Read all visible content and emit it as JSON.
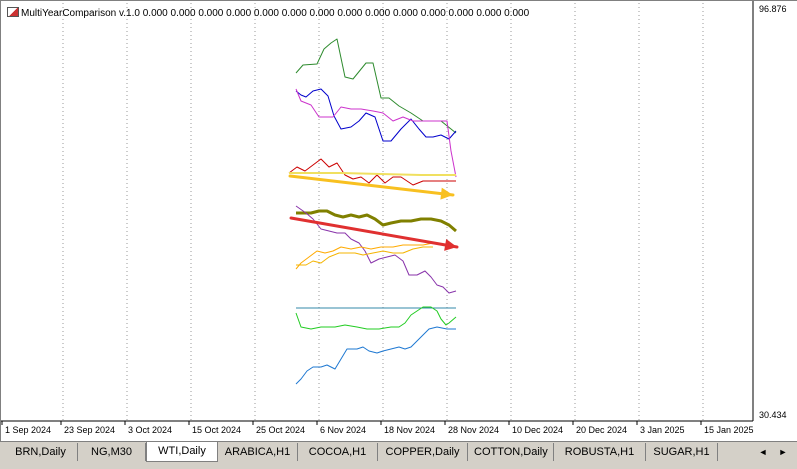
{
  "indicator": {
    "label": "MultiYearComparison v.1.0 0.000 0.000 0.000 0.000 0.000 0.000 0.000 0.000 0.000 0.000 0.000 0.000 0.000 0.000"
  },
  "price_axis": {
    "top": "96.876",
    "bottom": "30.434"
  },
  "time_axis": [
    "1 Sep 2024",
    "23 Sep 2024",
    "3 Oct 2024",
    "15 Oct 2024",
    "25 Oct 2024",
    "6 Nov 2024",
    "18 Nov 2024",
    "28 Nov 2024",
    "10 Dec 2024",
    "20 Dec 2024",
    "3 Jan 2025",
    "15 Jan 2025"
  ],
  "tabs": [
    "BRN,Daily",
    "NG,M30",
    "WTI,Daily",
    "ARABICA,H1",
    "COCOA,H1",
    "COPPER,Daily",
    "COTTON,Daily",
    "ROBUSTA,H1",
    "SUGAR,H1"
  ],
  "active_tab": "WTI,Daily",
  "scroll": {
    "left": "◄",
    "right": "►"
  },
  "colors": {
    "green": "#2e8b2e",
    "blue": "#0000cc",
    "magenta": "#cc33cc",
    "red": "#cc0000",
    "yellow": "#f0e060",
    "orange": "#f4b400",
    "olive": "#808000",
    "purple": "#8833aa",
    "orange2": "#ffaa00",
    "teal": "#3388aa",
    "lime": "#22cc22",
    "azure": "#1e78d2",
    "arrow_red": "#e03030",
    "arrow_orange": "#f8c020"
  }
}
